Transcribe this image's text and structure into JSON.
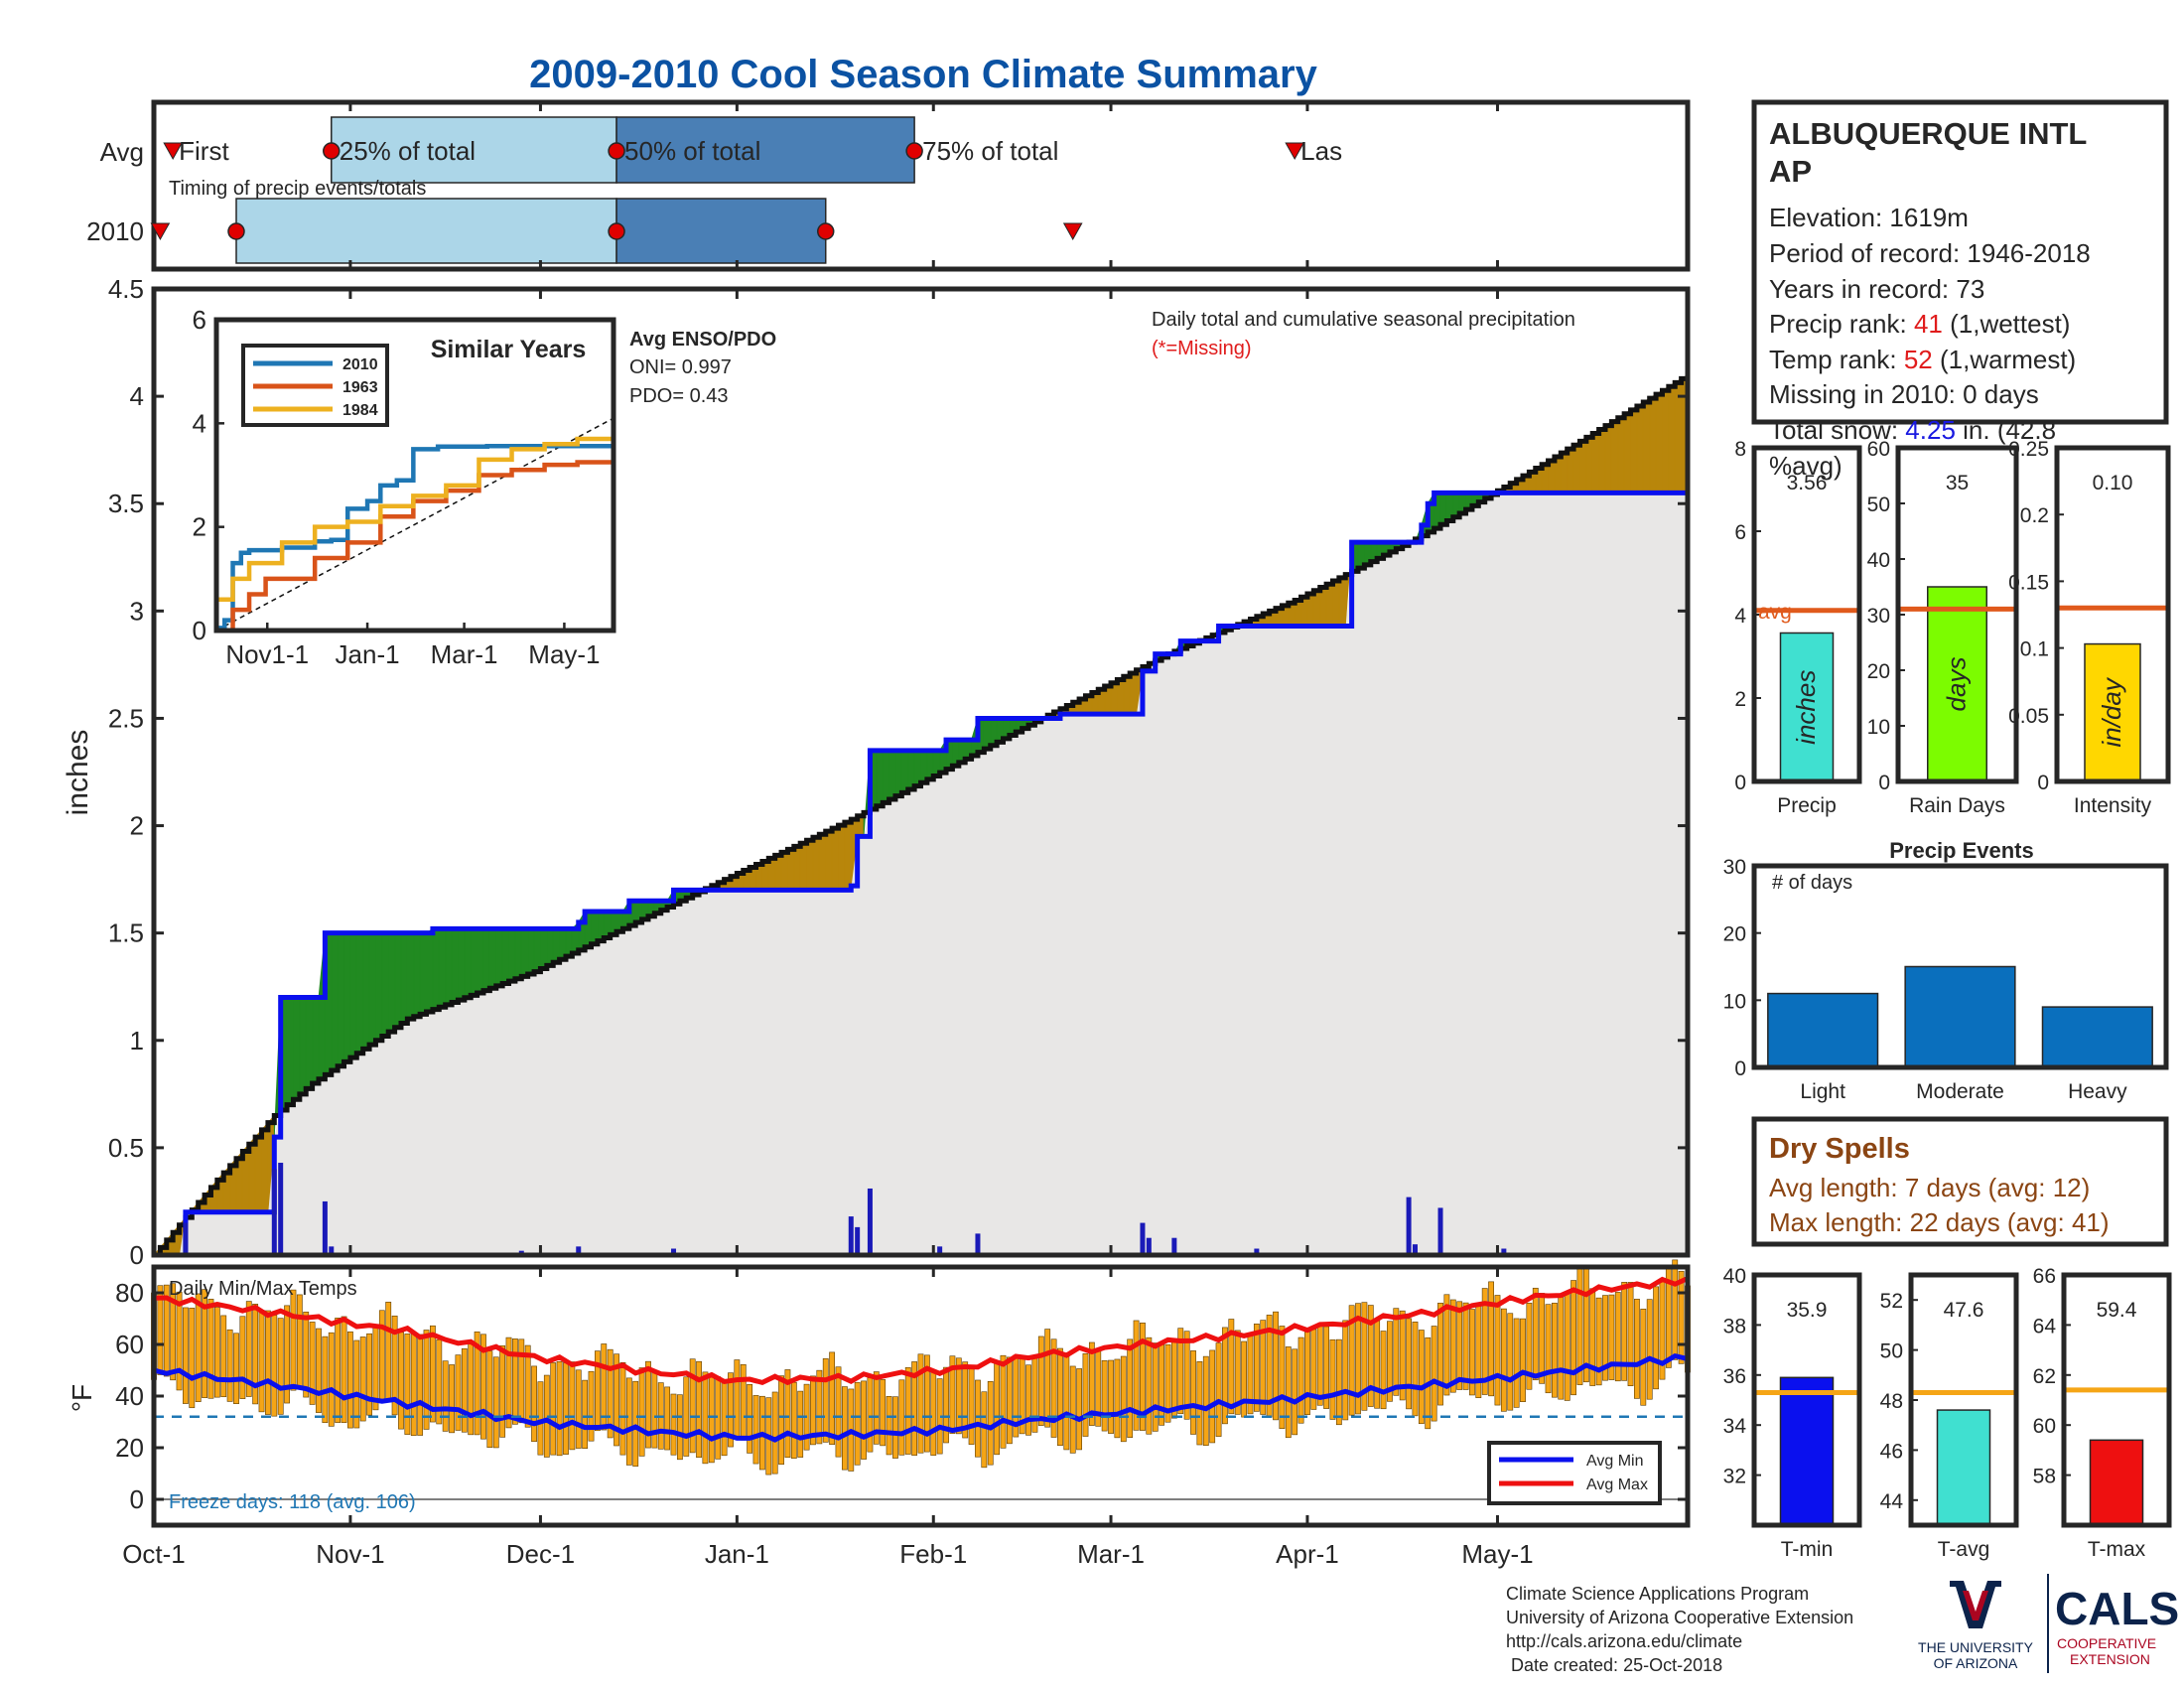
{
  "title": "2009-2010 Cool Season Climate Summary",
  "timing": {
    "row_avg_label": "Avg",
    "row_year_label": "2010",
    "subtitle": "Timing of precip events/totals",
    "first_label": "First",
    "last_label": "Las",
    "p25_label": "25% of total",
    "p50_label": "50% of total",
    "p75_label": "75% of total",
    "avg": {
      "first": 3,
      "p25": 28,
      "p50": 73,
      "p75": 120,
      "last": 180
    },
    "year": {
      "first": 1,
      "p25": 13,
      "p50": 73,
      "p75": 106,
      "last": 145
    }
  },
  "main": {
    "ylabel": "inches",
    "annotation_line1": "Daily total and cumulative seasonal precipitation",
    "annotation_line2": "(*=Missing)",
    "enso_title": "Avg ENSO/PDO",
    "oni": "ONI= 0.997",
    "pdo": "PDO= 0.43"
  },
  "inset": {
    "title": "Similar Years",
    "yticks": [
      "0",
      "2",
      "4",
      "6"
    ],
    "xticks": [
      "Nov1-1",
      "Jan-1",
      "Mar-1",
      "May-1"
    ],
    "legend": [
      "2010",
      "1963",
      "1984"
    ]
  },
  "temps": {
    "label": "Daily Min/Max Temps",
    "ylabel": "°F",
    "freeze": "Freeze days: 118 (avg. 106)",
    "legend_min": "Avg Min",
    "legend_max": "Avg Max"
  },
  "station": {
    "name_line1": "ALBUQUERQUE INTL",
    "name_line2": "AP",
    "elevation": "Elevation: 1619m",
    "period": "Period of record: 1946-2018",
    "years": "Years in record: 73",
    "precip_rank_pre": "Precip rank: ",
    "precip_rank_val": "41",
    "precip_rank_post": " (1,wettest)",
    "temp_rank_pre": "Temp rank: ",
    "temp_rank_val": "52",
    "temp_rank_post": " (1,warmest)",
    "missing": "Missing in 2010: 0 days",
    "snow_pre": "Total snow: ",
    "snow_val": "4.25",
    "snow_post": " in. (42.8",
    "snow_line2": "%avg)"
  },
  "summary_bars": {
    "precip": {
      "label": "Precip",
      "value": 3.56,
      "value_text": "3.56",
      "avg": 4.1,
      "unit": "inches",
      "ylim": [
        0,
        8
      ],
      "avg_label": "avg"
    },
    "rain_days": {
      "label": "Rain Days",
      "value": 35,
      "value_text": "35",
      "avg": 31,
      "unit": "days",
      "ylim": [
        0,
        60
      ]
    },
    "intensity": {
      "label": "Intensity",
      "value": 0.103,
      "value_text": "0.10",
      "avg": 0.13,
      "unit": "in/day",
      "ylim": [
        0,
        0.25
      ]
    }
  },
  "precip_events": {
    "title": "Precip Events",
    "ylabel": "# of days",
    "categories": [
      "Light",
      "Moderate",
      "Heavy"
    ],
    "values": [
      11,
      15,
      9
    ],
    "ylim": [
      0,
      30
    ]
  },
  "dry_spells": {
    "title": "Dry Spells",
    "avg": "Avg length: 7 days (avg: 12)",
    "max": "Max length: 22 days (avg: 41)"
  },
  "temp_bars": {
    "tmin": {
      "label": "T-min",
      "value": 35.9,
      "value_text": "35.9",
      "avg": 35.3,
      "ylim": [
        30,
        40
      ],
      "ticks": [
        32,
        34,
        36,
        38,
        40
      ]
    },
    "tavg": {
      "label": "T-avg",
      "value": 47.6,
      "value_text": "47.6",
      "avg": 48.3,
      "ylim": [
        43,
        53
      ],
      "ticks": [
        44,
        46,
        48,
        50,
        52
      ]
    },
    "tmax": {
      "label": "T-max",
      "value": 59.4,
      "value_text": "59.4",
      "avg": 61.4,
      "ylim": [
        56,
        66
      ],
      "ticks": [
        58,
        60,
        62,
        64,
        66
      ]
    }
  },
  "footer": {
    "line1": "Climate Science Applications Program",
    "line2": "University of Arizona Cooperative Extension",
    "line3": "http://cals.arizona.edu/climate",
    "line4": " Date created: 25-Oct-2018",
    "ua_line1": "THE UNIVERSITY",
    "ua_line2": "OF ARIZONA",
    "cals": "CALS",
    "coop1": "COOPERATIVE",
    "coop2": "EXTENSION"
  },
  "chart_data": [
    {
      "type": "area",
      "title": "Daily total and cumulative seasonal precipitation",
      "ylabel": "inches",
      "ylim": [
        0,
        4.5
      ],
      "yticks": [
        0,
        0.5,
        1,
        1.5,
        2,
        2.5,
        3,
        3.5,
        4,
        4.5
      ],
      "xlim_days": [
        0,
        242
      ],
      "xticks": [
        {
          "day": 0,
          "label": "Oct-1"
        },
        {
          "day": 31,
          "label": "Nov-1"
        },
        {
          "day": 61,
          "label": "Dec-1"
        },
        {
          "day": 92,
          "label": "Jan-1"
        },
        {
          "day": 123,
          "label": "Feb-1"
        },
        {
          "day": 151,
          "label": "Mar-1"
        },
        {
          "day": 182,
          "label": "Apr-1"
        },
        {
          "day": 212,
          "label": "May-1"
        }
      ],
      "series": [
        {
          "name": "avg cumulative",
          "x": [
            0,
            10,
            19,
            25,
            40,
            60,
            90,
            110,
            121,
            140,
            160,
            180,
            200,
            220,
            242
          ],
          "y": [
            0,
            0.35,
            0.65,
            0.8,
            1.1,
            1.32,
            1.75,
            2.03,
            2.2,
            2.5,
            2.8,
            3.05,
            3.35,
            3.7,
            4.1
          ]
        },
        {
          "name": "2010 cumulative",
          "x": [
            0,
            5,
            18,
            19,
            20,
            26,
            27,
            44,
            67,
            68,
            75,
            82,
            90,
            110,
            111,
            113,
            125,
            130,
            143,
            156,
            158,
            162,
            168,
            188,
            189,
            200,
            201,
            202,
            205,
            242
          ],
          "y": [
            0,
            0.2,
            0.2,
            0.55,
            1.2,
            1.2,
            1.5,
            1.52,
            1.55,
            1.6,
            1.65,
            1.7,
            1.7,
            1.72,
            1.95,
            2.35,
            2.4,
            2.5,
            2.52,
            2.72,
            2.8,
            2.86,
            2.93,
            2.93,
            3.32,
            3.4,
            3.5,
            3.55,
            3.55,
            3.56
          ]
        },
        {
          "name": "daily precip",
          "x": [
            5,
            19,
            20,
            27,
            28,
            58,
            67,
            82,
            110,
            111,
            113,
            124,
            130,
            156,
            157,
            161,
            174,
            198,
            199,
            203,
            213
          ],
          "y": [
            0.15,
            0.4,
            0.43,
            0.25,
            0.04,
            0.02,
            0.04,
            0.03,
            0.18,
            0.13,
            0.31,
            0.04,
            0.1,
            0.15,
            0.08,
            0.08,
            0.03,
            0.27,
            0.05,
            0.22,
            0.03
          ]
        }
      ]
    },
    {
      "type": "line",
      "title": "Daily Min/Max Temps",
      "ylabel": "°F",
      "ylim": [
        -10,
        90
      ],
      "yticks": [
        0,
        20,
        40,
        60,
        80
      ],
      "freeze_line": 32,
      "series": [
        {
          "name": "Avg Max",
          "x": [
            0,
            20,
            40,
            60,
            80,
            92,
            110,
            125,
            140,
            160,
            180,
            200,
            220,
            242
          ],
          "y": [
            78,
            72,
            65,
            55,
            49,
            46,
            47,
            50,
            56,
            61,
            66,
            72,
            79,
            85
          ]
        },
        {
          "name": "Avg Min",
          "x": [
            0,
            20,
            40,
            60,
            80,
            92,
            110,
            125,
            140,
            160,
            180,
            200,
            220,
            242
          ],
          "y": [
            50,
            44,
            37,
            30,
            26,
            24,
            25,
            27,
            31,
            35,
            39,
            44,
            49,
            55
          ]
        }
      ]
    },
    {
      "type": "line",
      "title": "Similar Years",
      "ylim": [
        0,
        6
      ],
      "series": [
        {
          "name": "2010",
          "x": [
            0,
            5,
            10,
            15,
            20,
            40,
            60,
            70,
            80,
            92,
            100,
            110,
            120,
            135,
            150,
            165,
            180,
            200,
            210,
            242
          ],
          "y": [
            0.05,
            0.2,
            1.3,
            1.5,
            1.55,
            1.6,
            1.72,
            1.75,
            2.35,
            2.5,
            2.8,
            2.9,
            3.5,
            3.55,
            3.55,
            3.56,
            3.56,
            3.56,
            3.56,
            3.56
          ]
        },
        {
          "name": "1963",
          "x": [
            0,
            10,
            20,
            30,
            60,
            80,
            100,
            120,
            140,
            160,
            180,
            200,
            220,
            242
          ],
          "y": [
            0.0,
            0.4,
            0.7,
            1.0,
            1.4,
            1.7,
            2.2,
            2.5,
            2.7,
            3.0,
            3.1,
            3.2,
            3.25,
            3.3
          ]
        },
        {
          "name": "1984",
          "x": [
            0,
            10,
            20,
            40,
            60,
            80,
            100,
            120,
            140,
            160,
            180,
            200,
            220,
            242
          ],
          "y": [
            0.6,
            1.0,
            1.3,
            1.7,
            2.0,
            2.1,
            2.4,
            2.6,
            2.8,
            3.3,
            3.5,
            3.6,
            3.7,
            3.85
          ]
        }
      ]
    }
  ]
}
